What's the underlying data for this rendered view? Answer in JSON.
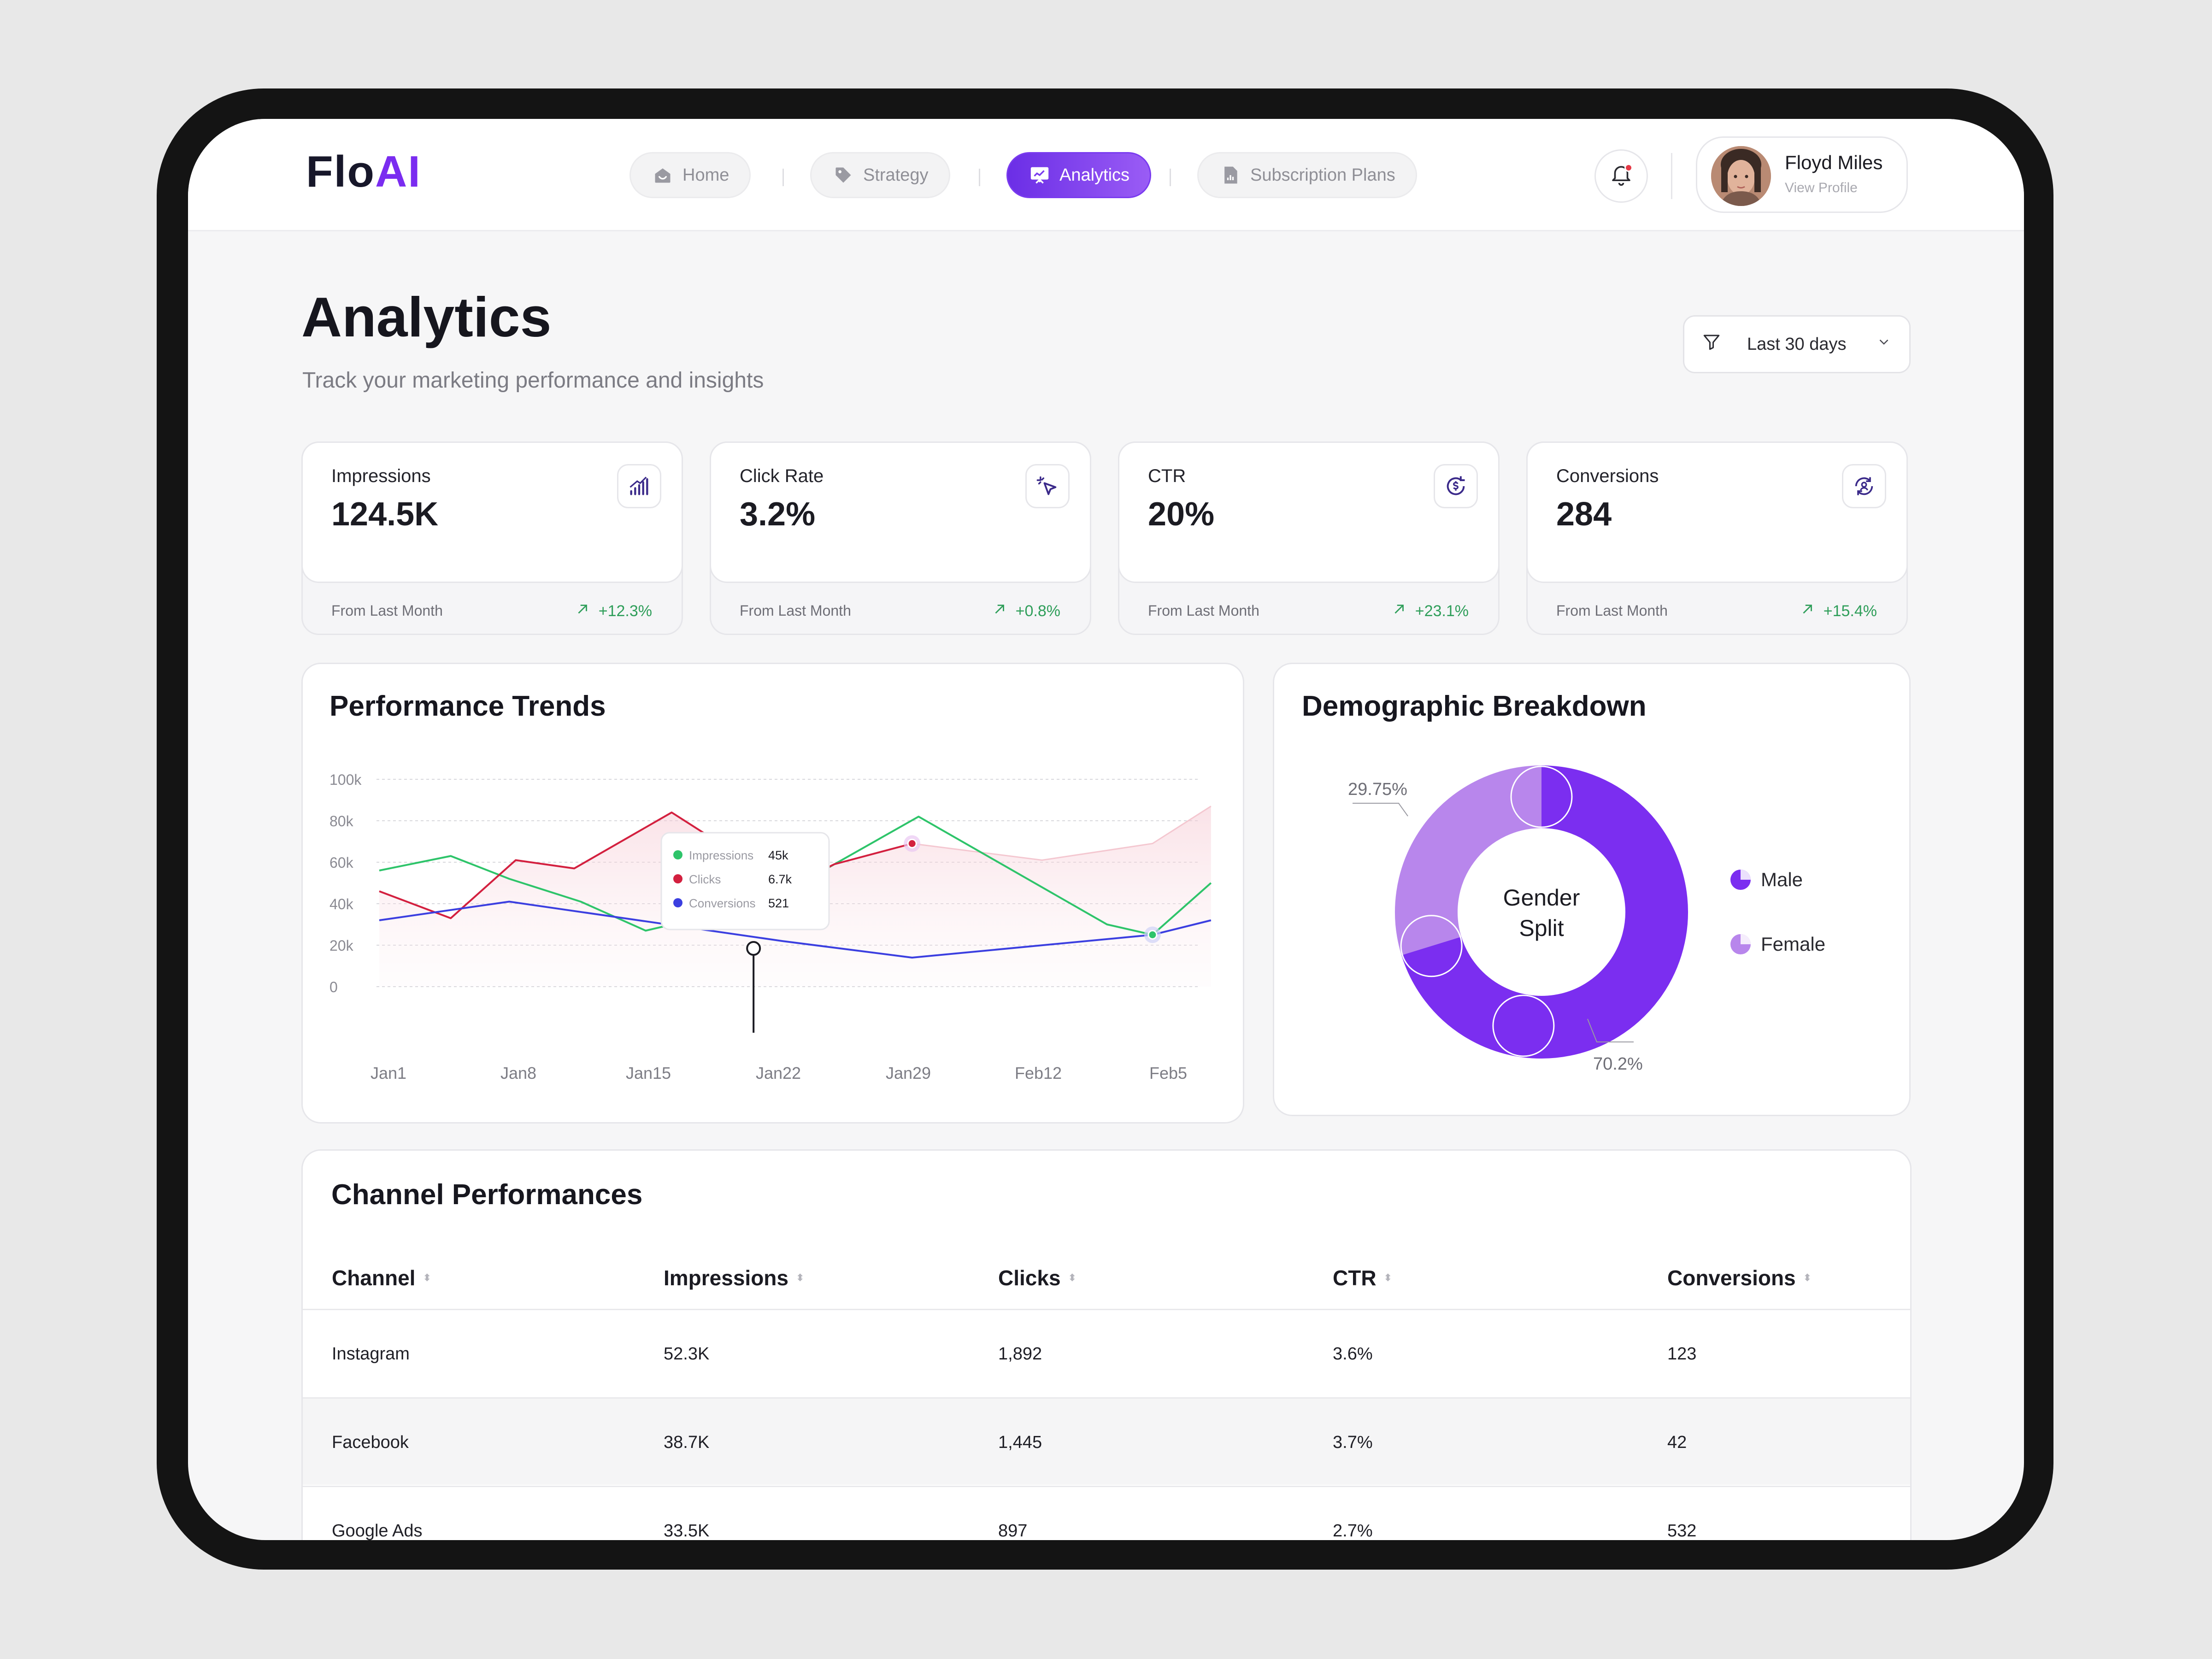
{
  "app": {
    "logo_main": "Flo",
    "logo_accent": "AI",
    "accent": "#7a2cf0"
  },
  "nav": [
    {
      "label": "Home",
      "icon": "home-icon"
    },
    {
      "label": "Strategy",
      "icon": "tag-icon"
    },
    {
      "label": "Analytics",
      "icon": "presentation-chart-icon",
      "active": true
    },
    {
      "label": "Subscription Plans",
      "icon": "document-chart-icon"
    }
  ],
  "user": {
    "name": "Floyd Miles",
    "link": "View Profile"
  },
  "page": {
    "title": "Analytics",
    "subtitle": "Track your marketing performance and insights"
  },
  "filter": {
    "label": "Last 30 days"
  },
  "stats": [
    {
      "title": "Impressions",
      "value": "124.5K",
      "footer": "From Last Month",
      "change": "+12.3%",
      "icon": "signal-bars-icon"
    },
    {
      "title": "Click Rate",
      "value": "3.2%",
      "footer": "From Last Month",
      "change": "+0.8%",
      "icon": "cursor-click-icon"
    },
    {
      "title": "CTR",
      "value": "20%",
      "footer": "From Last Month",
      "change": "+23.1%",
      "icon": "dollar-refresh-icon"
    },
    {
      "title": "Conversions",
      "value": "284",
      "footer": "From Last Month",
      "change": "+15.4%",
      "icon": "user-sync-icon"
    }
  ],
  "trends": {
    "title": "Performance Trends"
  },
  "chart_data": [
    {
      "type": "line",
      "title": "Performance Trends",
      "x": [
        "Jan1",
        "Jan8",
        "Jan15",
        "Jan22",
        "Jan29",
        "Feb12",
        "Feb5"
      ],
      "y_ticks": [
        "100k",
        "80k",
        "60k",
        "40k",
        "20k",
        "0"
      ],
      "ylim": [
        0,
        100000
      ],
      "grid": true,
      "series": [
        {
          "name": "Impressions",
          "color": "#2ec46a",
          "points": [
            [
              0,
              56000
            ],
            [
              0.55,
              63000
            ],
            [
              1,
              52000
            ],
            [
              1.55,
              41000
            ],
            [
              2.05,
              27000
            ],
            [
              2.8,
              38000
            ],
            [
              3.05,
              43000
            ],
            [
              4.15,
              82000
            ],
            [
              5.6,
              30000
            ],
            [
              5.95,
              25000
            ],
            [
              6.4,
              50000
            ]
          ]
        },
        {
          "name": "Clicks",
          "color": "#d3203f",
          "points": [
            [
              0,
              46000
            ],
            [
              0.55,
              33000
            ],
            [
              1.05,
              61000
            ],
            [
              1.5,
              57000
            ],
            [
              2.25,
              84000
            ],
            [
              3.15,
              48000
            ],
            [
              3.5,
              59000
            ],
            [
              4.1,
              69000
            ]
          ]
        },
        {
          "name": "Conversions",
          "color": "#3b3fe0",
          "points": [
            [
              0,
              32000
            ],
            [
              1,
              41000
            ],
            [
              3.1,
              22000
            ],
            [
              4.1,
              14000
            ],
            [
              5.95,
              25000
            ],
            [
              6.4,
              32000
            ]
          ]
        },
        {
          "name": "Clicks trend",
          "color": "#f4c7d0",
          "area": true,
          "points": [
            [
              0,
              46000
            ],
            [
              0.55,
              33000
            ],
            [
              1.05,
              61000
            ],
            [
              1.5,
              57000
            ],
            [
              2.25,
              84000
            ],
            [
              3.15,
              48000
            ],
            [
              3.5,
              59000
            ],
            [
              4.1,
              69000
            ],
            [
              5.1,
              61000
            ],
            [
              5.95,
              69000
            ],
            [
              6.4,
              87000
            ]
          ]
        }
      ],
      "tooltip": {
        "x": 3.0,
        "items": [
          {
            "name": "Impressions",
            "value": "45k",
            "color": "#2ec46a"
          },
          {
            "name": "Clicks",
            "value": "6.7k",
            "color": "#d3203f"
          },
          {
            "name": "Conversions",
            "value": "521",
            "color": "#3b3fe0"
          }
        ]
      }
    },
    {
      "type": "pie",
      "title": "Demographic Breakdown",
      "center_label": [
        "Gender",
        "Split"
      ],
      "slices": [
        {
          "name": "Male",
          "value": 70.2,
          "label": "70.2%",
          "color": "#7b2ef0"
        },
        {
          "name": "Female",
          "value": 29.75,
          "label": "29.75%",
          "color": "#b886ec"
        }
      ]
    }
  ],
  "demographics": {
    "title": "Demographic Breakdown",
    "legend": [
      "Male",
      "Female"
    ]
  },
  "table": {
    "title": "Channel Performances",
    "columns": [
      "Channel",
      "Impressions",
      "Clicks",
      "CTR",
      "Conversions"
    ],
    "rows": [
      [
        "Instagram",
        "52.3K",
        "1,892",
        "3.6%",
        "123"
      ],
      [
        "Facebook",
        "38.7K",
        "1,445",
        "3.7%",
        "42"
      ],
      [
        "Google Ads",
        "33.5K",
        "897",
        "2.7%",
        "532"
      ]
    ]
  }
}
